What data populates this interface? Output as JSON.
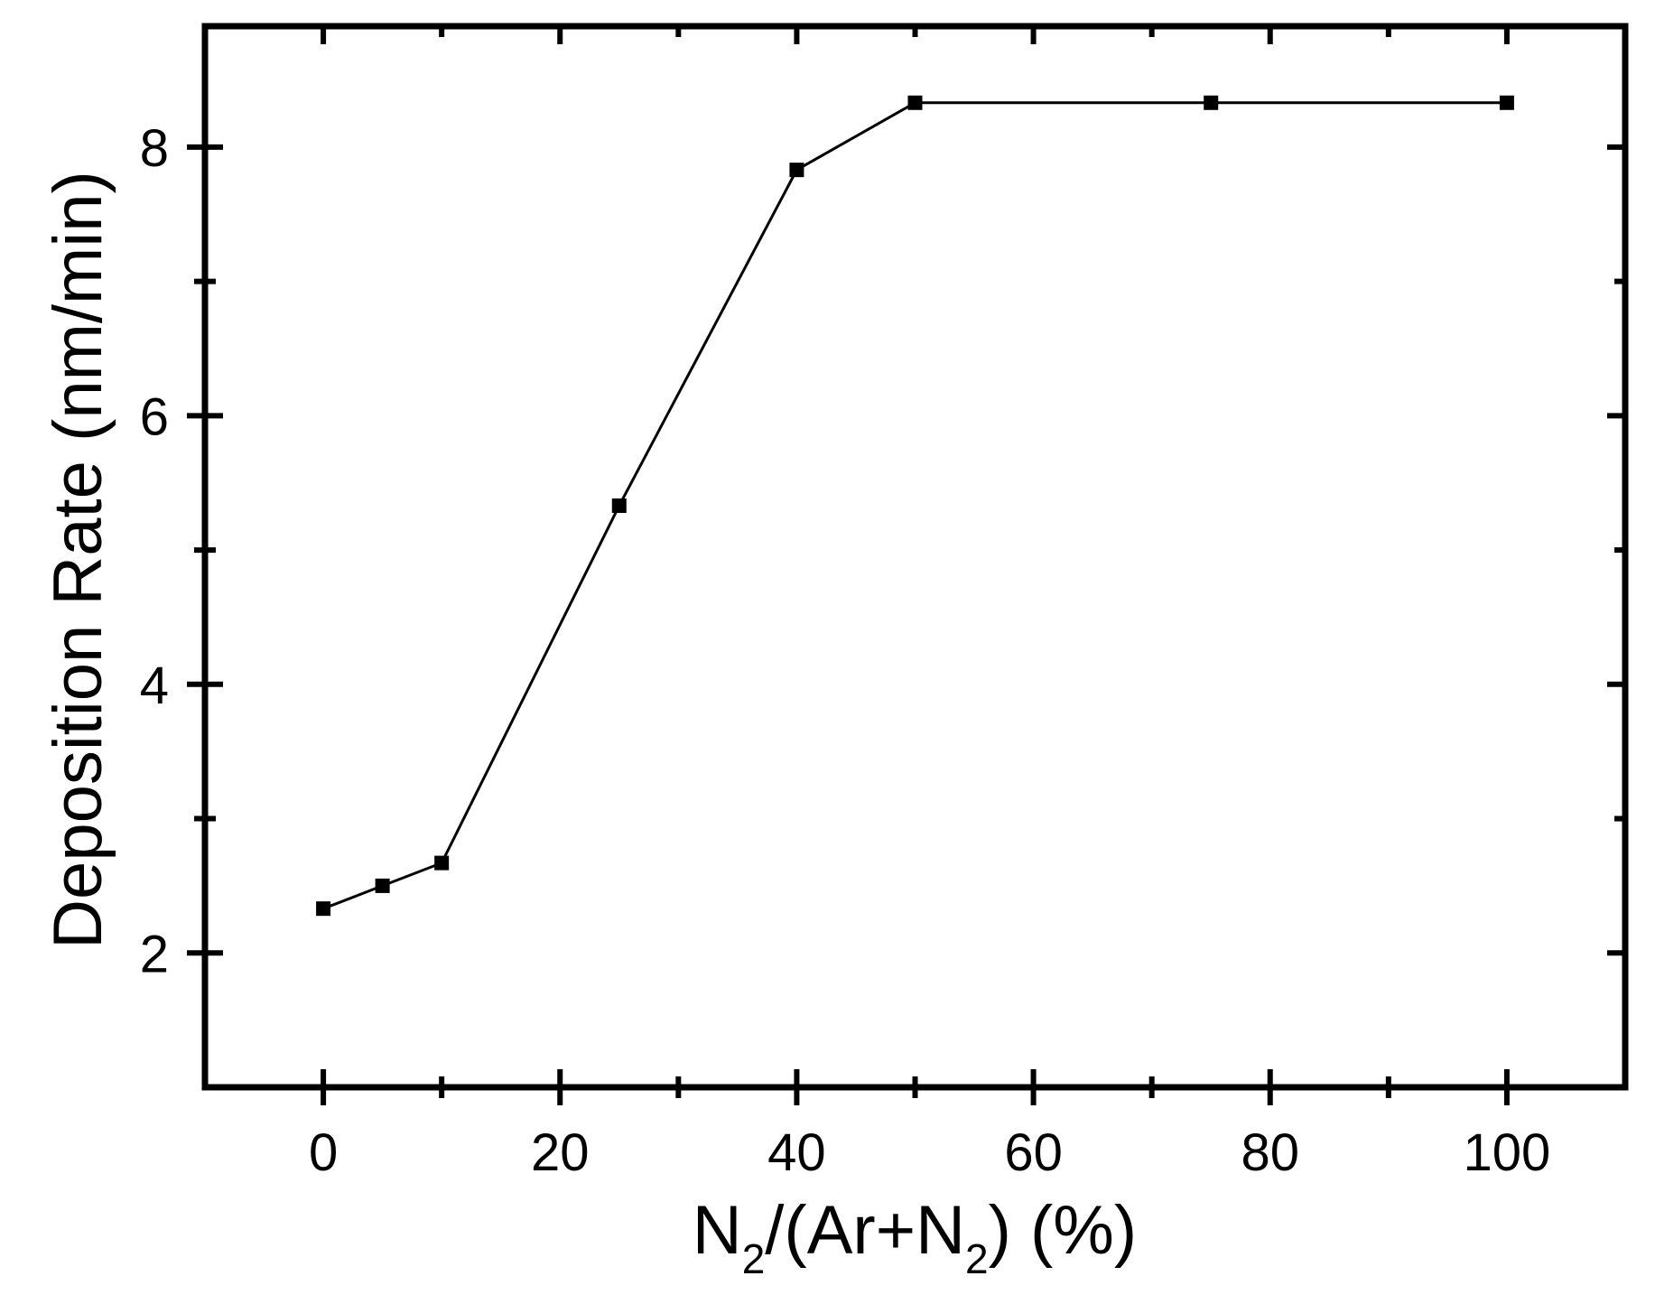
{
  "chart_data": {
    "type": "line",
    "title": "",
    "xlabel": {
      "prefix": "N",
      "sub1": "2",
      "middle": "/(Ar+N",
      "sub2": "2",
      "suffix": ") (%)"
    },
    "ylabel": "Deposition Rate (nm/min)",
    "xlim": [
      -10,
      110
    ],
    "ylim": [
      1,
      8.9
    ],
    "x_ticks": [
      0,
      20,
      40,
      60,
      80,
      100
    ],
    "x_tick_labels": [
      "0",
      "20",
      "40",
      "60",
      "80",
      "100"
    ],
    "x_minor_ticks": [
      10,
      30,
      50,
      70,
      90
    ],
    "y_ticks": [
      2,
      4,
      6,
      8
    ],
    "y_tick_labels": [
      "2",
      "4",
      "6",
      "8"
    ],
    "y_minor_ticks": [
      3,
      5,
      7
    ],
    "grid": false,
    "series": [
      {
        "x": [
          0,
          5,
          10,
          25,
          40,
          50,
          75,
          100
        ],
        "y": [
          2.33,
          2.5,
          2.67,
          5.33,
          7.83,
          8.33,
          8.33,
          8.33
        ],
        "color": "#000000",
        "marker": "square"
      }
    ]
  }
}
